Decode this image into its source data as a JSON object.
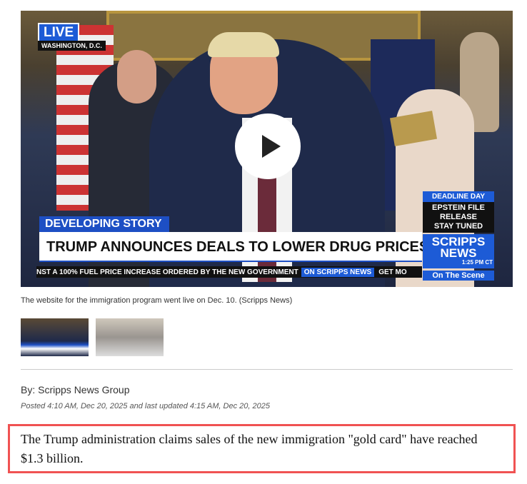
{
  "video": {
    "live_badge": "LIVE",
    "location": "WASHINGTON, D.C.",
    "lower_third": {
      "label": "DEVELOPING STORY",
      "headline": "TRUMP ANNOUNCES DEALS TO LOWER DRUG PRICES",
      "ticker": "NST A 100% FUEL PRICE INCREASE ORDERED BY THE NEW GOVERNMENT",
      "ticker_brand": "ON SCRIPPS NEWS",
      "ticker_next": "GET MO"
    },
    "side_panel": {
      "deadline": "DEADLINE DAY",
      "line1": "EPSTEIN FILE RELEASE",
      "line2": "STAY TUNED",
      "brand1": "SCRIPPS",
      "brand2": "NEWS",
      "time": "1:25 PM CT",
      "segment": "On The Scene"
    },
    "play_icon": "play-icon"
  },
  "caption": "The website for the immigration program went live on Dec. 10. (Scripps News)",
  "byline": "By: Scripps News Group",
  "posted": "Posted 4:10 AM, Dec 20, 2025 and last updated 4:15 AM, Dec 20, 2025",
  "summary": "The Trump administration claims sales of the new immigration \"gold card\" have reached $1.3 billion.",
  "colors": {
    "highlight_border": "#f05252",
    "brand_blue": "#1d5bd6"
  }
}
